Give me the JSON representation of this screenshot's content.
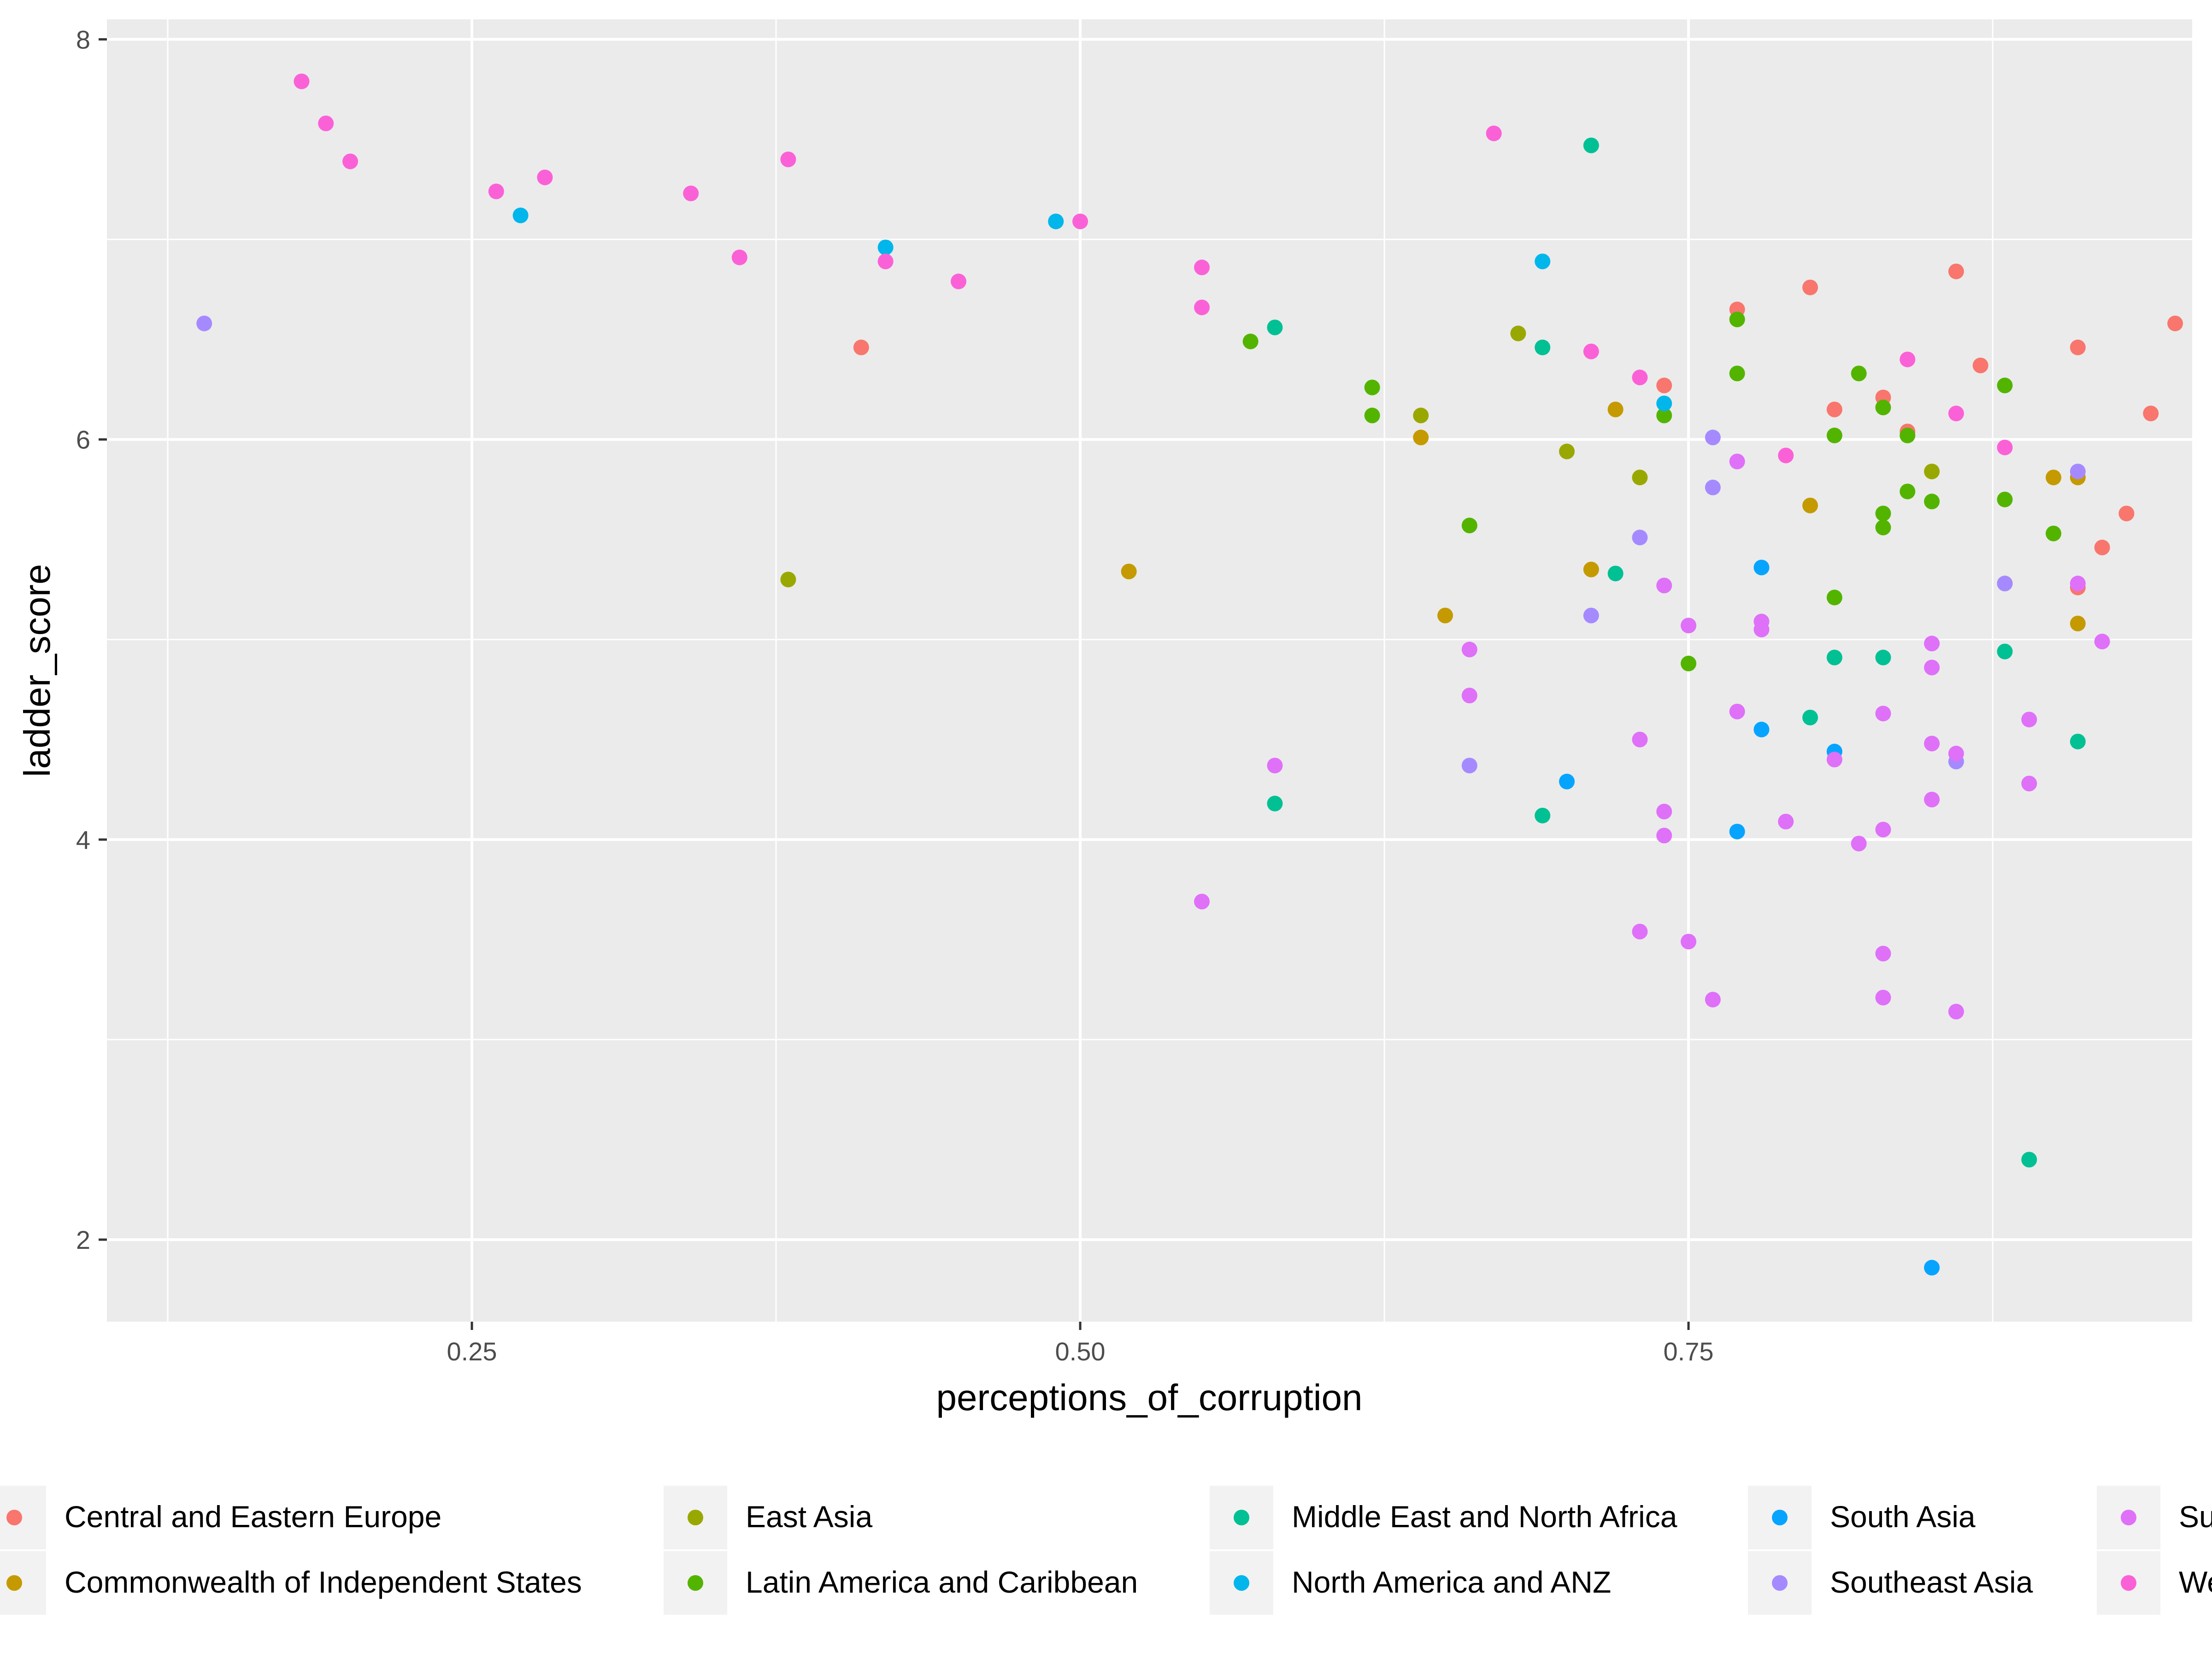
{
  "chart_data": {
    "type": "scatter",
    "title": "",
    "xlabel": "perceptions_of_corruption",
    "ylabel": "ladder_score",
    "xlim": [
      0.1,
      0.957
    ],
    "ylim": [
      1.59,
      8.1
    ],
    "x_ticks": [
      0.25,
      0.5,
      0.75
    ],
    "x_tick_labels": [
      "0.25",
      "0.50",
      "0.75"
    ],
    "y_ticks": [
      2,
      4,
      6,
      8
    ],
    "y_tick_labels": [
      "2",
      "4",
      "6",
      "8"
    ],
    "grid": true,
    "legend_position": "bottom",
    "series": [
      {
        "name": "Central and Eastern Europe",
        "color": "#F8766D",
        "points": [
          [
            0.41,
            6.46
          ],
          [
            0.77,
            6.65
          ],
          [
            0.8,
            6.76
          ],
          [
            0.86,
            6.84
          ],
          [
            0.81,
            6.15
          ],
          [
            0.83,
            6.21
          ],
          [
            0.84,
            6.04
          ],
          [
            0.87,
            6.37
          ],
          [
            0.91,
            6.46
          ],
          [
            0.95,
            6.58
          ],
          [
            0.94,
            6.13
          ],
          [
            0.93,
            5.63
          ],
          [
            0.92,
            5.46
          ],
          [
            0.88,
            5.28
          ],
          [
            0.91,
            5.26
          ],
          [
            0.74,
            6.27
          ]
        ]
      },
      {
        "name": "Commonwealth of Independent States",
        "color": "#C49A00",
        "points": [
          [
            0.52,
            5.34
          ],
          [
            0.64,
            6.01
          ],
          [
            0.65,
            5.12
          ],
          [
            0.71,
            5.35
          ],
          [
            0.72,
            6.15
          ],
          [
            0.8,
            5.67
          ],
          [
            0.9,
            5.81
          ],
          [
            0.91,
            5.81
          ],
          [
            0.91,
            5.08
          ]
        ]
      },
      {
        "name": "East Asia",
        "color": "#99A800",
        "points": [
          [
            0.38,
            5.3
          ],
          [
            0.64,
            6.12
          ],
          [
            0.68,
            6.53
          ],
          [
            0.7,
            5.94
          ],
          [
            0.73,
            5.81
          ],
          [
            0.85,
            5.84
          ]
        ]
      },
      {
        "name": "Latin America and Caribbean",
        "color": "#53B400",
        "points": [
          [
            0.57,
            6.49
          ],
          [
            0.62,
            6.12
          ],
          [
            0.62,
            6.26
          ],
          [
            0.66,
            5.57
          ],
          [
            0.74,
            6.12
          ],
          [
            0.75,
            4.88
          ],
          [
            0.77,
            6.6
          ],
          [
            0.77,
            6.33
          ],
          [
            0.81,
            6.02
          ],
          [
            0.82,
            6.33
          ],
          [
            0.83,
            6.16
          ],
          [
            0.84,
            6.02
          ],
          [
            0.84,
            5.74
          ],
          [
            0.85,
            5.69
          ],
          [
            0.83,
            5.63
          ],
          [
            0.83,
            5.56
          ],
          [
            0.81,
            5.21
          ],
          [
            0.88,
            5.7
          ],
          [
            0.88,
            6.27
          ],
          [
            0.9,
            5.53
          ]
        ]
      },
      {
        "name": "Middle East and North Africa",
        "color": "#00C094",
        "points": [
          [
            0.58,
            6.56
          ],
          [
            0.58,
            4.18
          ],
          [
            0.69,
            4.12
          ],
          [
            0.69,
            6.46
          ],
          [
            0.71,
            7.47
          ],
          [
            0.72,
            5.33
          ],
          [
            0.8,
            4.61
          ],
          [
            0.81,
            4.91
          ],
          [
            0.83,
            4.91
          ],
          [
            0.88,
            4.94
          ],
          [
            0.91,
            4.49
          ],
          [
            0.89,
            2.4
          ]
        ]
      },
      {
        "name": "North America and ANZ",
        "color": "#00B6EB",
        "points": [
          [
            0.27,
            7.12
          ],
          [
            0.42,
            6.96
          ],
          [
            0.49,
            7.09
          ],
          [
            0.69,
            6.89
          ],
          [
            0.74,
            6.18
          ]
        ]
      },
      {
        "name": "South Asia",
        "color": "#06A4FF",
        "points": [
          [
            0.7,
            4.29
          ],
          [
            0.77,
            4.04
          ],
          [
            0.78,
            5.36
          ],
          [
            0.78,
            4.55
          ],
          [
            0.81,
            4.44
          ],
          [
            0.85,
            1.86
          ]
        ]
      },
      {
        "name": "Southeast Asia",
        "color": "#A58AFF",
        "points": [
          [
            0.14,
            6.58
          ],
          [
            0.66,
            4.37
          ],
          [
            0.71,
            5.12
          ],
          [
            0.73,
            5.51
          ],
          [
            0.76,
            6.01
          ],
          [
            0.76,
            5.76
          ],
          [
            0.86,
            4.39
          ],
          [
            0.88,
            5.28
          ],
          [
            0.91,
            5.84
          ]
        ]
      },
      {
        "name": "Sub-Saharan Africa",
        "color": "#DF70F8",
        "points": [
          [
            0.55,
            3.69
          ],
          [
            0.58,
            4.37
          ],
          [
            0.66,
            4.95
          ],
          [
            0.66,
            4.72
          ],
          [
            0.73,
            3.54
          ],
          [
            0.73,
            4.5
          ],
          [
            0.74,
            5.27
          ],
          [
            0.74,
            4.14
          ],
          [
            0.74,
            4.02
          ],
          [
            0.75,
            5.07
          ],
          [
            0.75,
            3.49
          ],
          [
            0.76,
            3.2
          ],
          [
            0.77,
            4.64
          ],
          [
            0.77,
            5.89
          ],
          [
            0.78,
            5.09
          ],
          [
            0.78,
            5.05
          ],
          [
            0.79,
            4.09
          ],
          [
            0.81,
            4.4
          ],
          [
            0.82,
            3.98
          ],
          [
            0.83,
            4.63
          ],
          [
            0.83,
            4.05
          ],
          [
            0.83,
            3.43
          ],
          [
            0.83,
            3.21
          ],
          [
            0.85,
            4.98
          ],
          [
            0.85,
            4.86
          ],
          [
            0.85,
            4.2
          ],
          [
            0.85,
            4.48
          ],
          [
            0.86,
            4.43
          ],
          [
            0.86,
            3.14
          ],
          [
            0.89,
            4.6
          ],
          [
            0.89,
            4.28
          ],
          [
            0.91,
            5.28
          ],
          [
            0.92,
            4.99
          ]
        ]
      },
      {
        "name": "Western Europe",
        "color": "#FB61D7",
        "points": [
          [
            0.18,
            7.79
          ],
          [
            0.19,
            7.58
          ],
          [
            0.2,
            7.39
          ],
          [
            0.26,
            7.24
          ],
          [
            0.28,
            7.31
          ],
          [
            0.34,
            7.23
          ],
          [
            0.36,
            6.91
          ],
          [
            0.38,
            7.4
          ],
          [
            0.42,
            6.89
          ],
          [
            0.45,
            6.79
          ],
          [
            0.5,
            7.09
          ],
          [
            0.55,
            6.86
          ],
          [
            0.55,
            6.66
          ],
          [
            0.67,
            7.53
          ],
          [
            0.71,
            6.44
          ],
          [
            0.73,
            6.31
          ],
          [
            0.79,
            5.92
          ],
          [
            0.84,
            6.4
          ],
          [
            0.86,
            6.13
          ],
          [
            0.88,
            5.96
          ]
        ]
      }
    ]
  }
}
